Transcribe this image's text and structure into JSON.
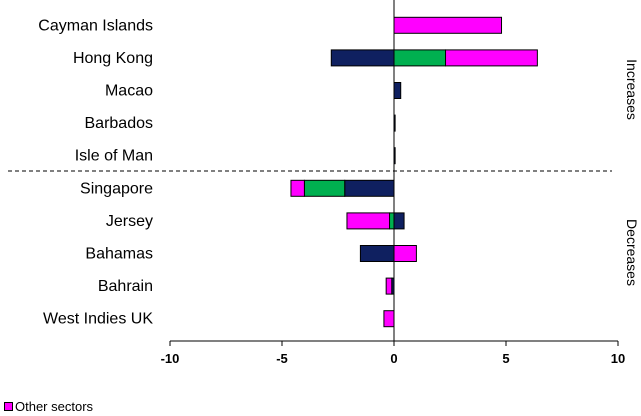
{
  "chart_data": {
    "type": "bar",
    "orientation": "horizontal-stacked",
    "categories": [
      "Cayman Islands",
      "Hong Kong",
      "Macao",
      "Barbados",
      "Isle of Man",
      "Singapore",
      "Jersey",
      "Bahamas",
      "Bahrain",
      "West Indies UK"
    ],
    "series": [
      {
        "color": "#0f2060",
        "values": [
          0,
          -2.8,
          0.3,
          0.05,
          0.05,
          -2.2,
          0.45,
          -1.5,
          -0.1,
          0
        ]
      },
      {
        "color": "#00b050",
        "values": [
          0,
          2.3,
          0,
          0,
          0,
          -1.8,
          -0.2,
          0,
          0,
          0
        ]
      },
      {
        "name": "Other sectors",
        "color": "#ff00ff",
        "values": [
          4.8,
          4.1,
          0,
          0,
          0,
          -0.6,
          -1.9,
          1.0,
          -0.25,
          -0.45
        ]
      }
    ],
    "xlim": [
      -10,
      10
    ],
    "xticks": [
      "-10",
      "-5",
      "0",
      "5",
      "10"
    ],
    "groups": [
      {
        "label": "Increases"
      },
      {
        "label": "Decreases"
      }
    ],
    "legend": {
      "position": "bottom-left",
      "entries": [
        "Other sectors"
      ]
    }
  }
}
